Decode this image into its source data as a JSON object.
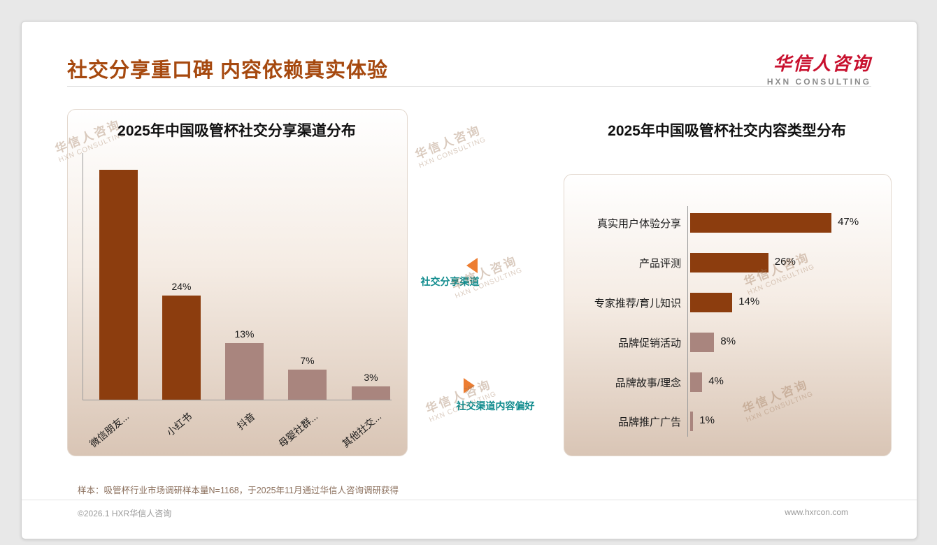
{
  "header": {
    "title": "社交分享重口碑 内容依赖真实体验",
    "logo_cn": "华信人咨询",
    "logo_en": "HXN CONSULTING"
  },
  "watermark": {
    "line1": "华信人咨询",
    "line2": "HXN CONSULTING"
  },
  "annotations": {
    "share_channel": "社交分享渠道",
    "content_pref": "社交渠道内容偏好"
  },
  "footnote": "样本：吸管杯行业市场调研样本量N=1168，于2025年11月通过华信人咨询调研获得",
  "footer": {
    "copyright": "©2026.1 HXR华信人咨询",
    "website": "www.hxrcon.com"
  },
  "colors": {
    "title_accent": "#a6490f",
    "dark_bar": "#8c3d0e",
    "light_bar": "#a9857e",
    "arrow_orange": "#ed7d31",
    "annotation_teal": "#0f8b8d",
    "logo_red": "#c8102e"
  },
  "chart_data": [
    {
      "type": "bar",
      "orientation": "vertical",
      "title": "2025年中国吸管杯社交分享渠道分布",
      "categories": [
        "微信朋友...",
        "小红书",
        "抖音",
        "母婴社群...",
        "其他社交..."
      ],
      "values": [
        53,
        24,
        13,
        7,
        3
      ],
      "labels": [
        null,
        "24%",
        "13%",
        "7%",
        "3%"
      ],
      "bar_colors": [
        "dark",
        "dark",
        "light",
        "light",
        "light"
      ],
      "ylim": [
        0,
        60
      ],
      "grid": false,
      "legend": false
    },
    {
      "type": "bar",
      "orientation": "horizontal",
      "title": "2025年中国吸管杯社交内容类型分布",
      "categories": [
        "真实用户体验分享",
        "产品评测",
        "专家推荐/育儿知识",
        "品牌促销活动",
        "品牌故事/理念",
        "品牌推广广告"
      ],
      "values": [
        47,
        26,
        14,
        8,
        4,
        1
      ],
      "labels": [
        "47%",
        "26%",
        "14%",
        "8%",
        "4%",
        "1%"
      ],
      "bar_colors": [
        "dark",
        "dark",
        "dark",
        "light",
        "light",
        "light"
      ],
      "xlim": [
        0,
        50
      ],
      "grid": false,
      "legend": false
    }
  ]
}
